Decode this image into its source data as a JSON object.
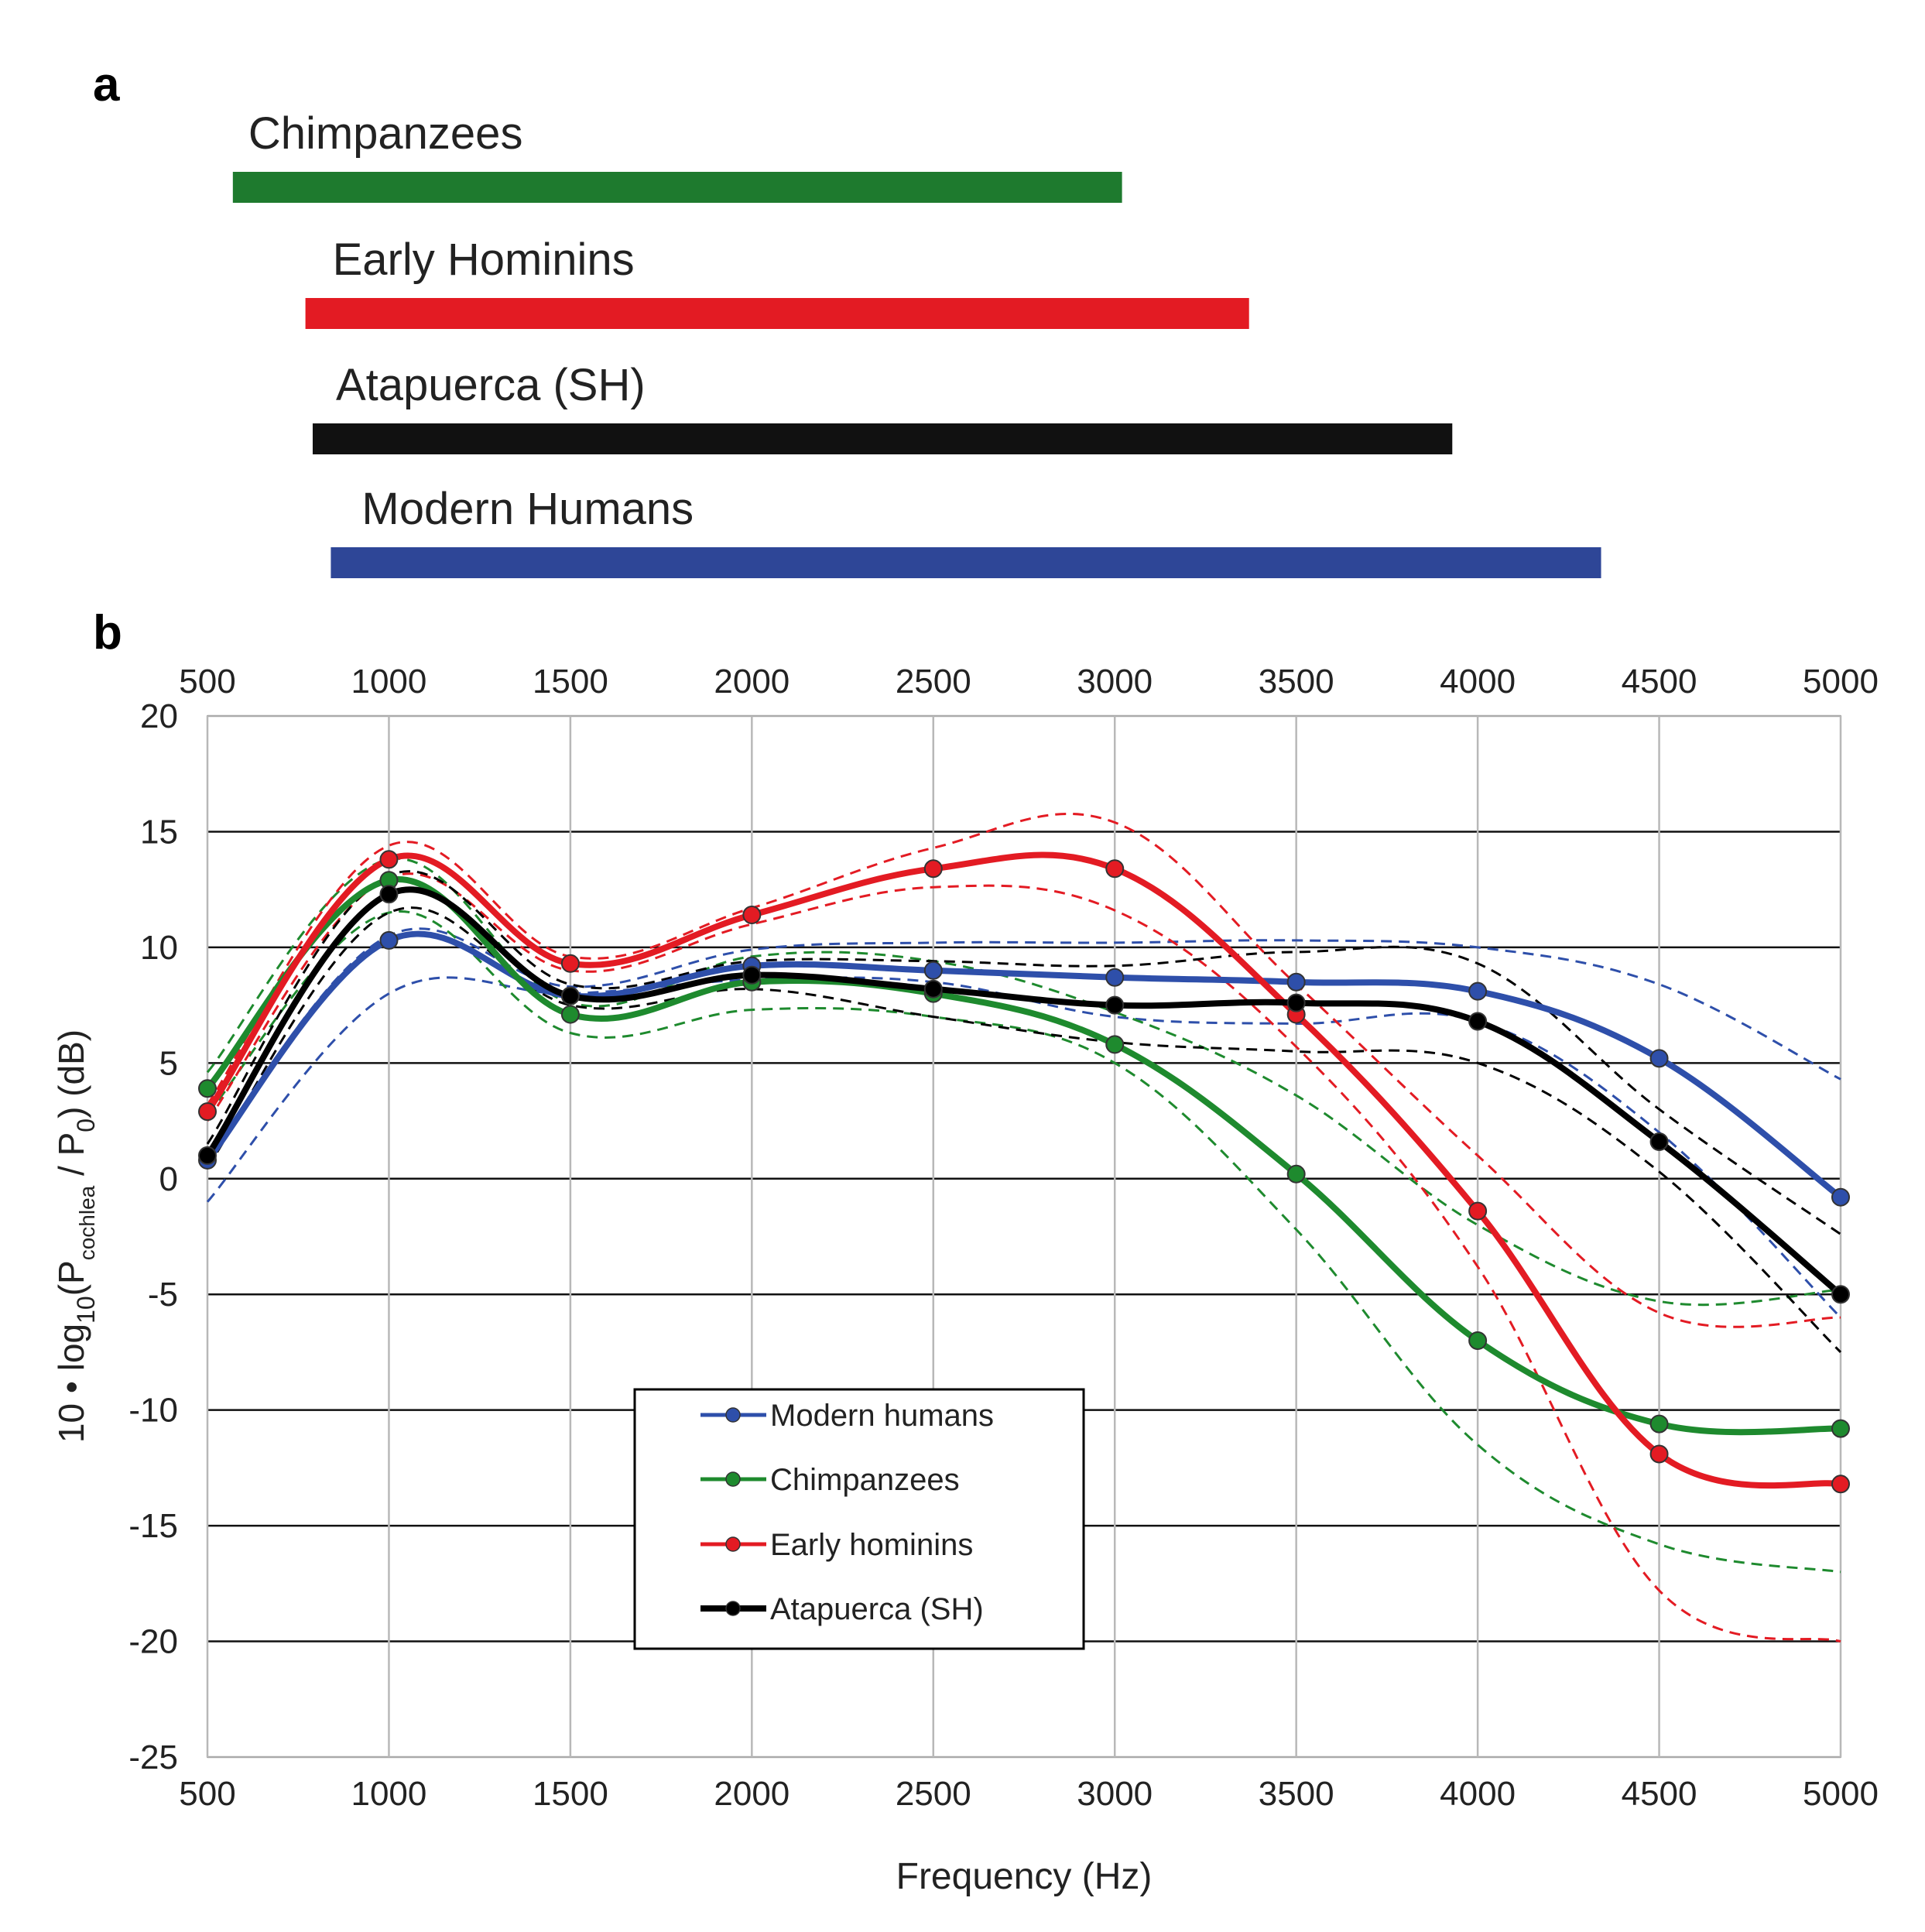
{
  "figure": {
    "panel_a_label": "a",
    "panel_b_label": "b"
  },
  "chart_data": [
    {
      "type": "bar",
      "orientation": "horizontal-range",
      "x_unit": "Frequency (Hz)",
      "note_scale": "shares frequency axis with panel b (500–5000 Hz)",
      "series": [
        {
          "name": "Chimpanzees",
          "start": 570,
          "end": 3020,
          "color": "#1e7a2e"
        },
        {
          "name": "Early Hominins",
          "start": 770,
          "end": 3370,
          "color": "#e31b23"
        },
        {
          "name": "Atapuerca (SH)",
          "start": 790,
          "end": 3930,
          "color": "#111111"
        },
        {
          "name": "Modern Humans",
          "start": 840,
          "end": 4340,
          "color": "#2e4697"
        }
      ]
    },
    {
      "type": "line",
      "xlabel": "Frequency (Hz)",
      "ylabel_parts": {
        "prefix": "10 • log",
        "sub1": "10",
        "mid": "(P",
        "sub2": "cochlea",
        "mid2": " / P",
        "sub3": "0",
        "suffix": ") (dB)"
      },
      "xlim": [
        500,
        5000
      ],
      "ylim": [
        -25,
        20
      ],
      "x_ticks": [
        500,
        1000,
        1500,
        2000,
        2500,
        3000,
        3500,
        4000,
        4500,
        5000
      ],
      "x_tick_labels": [
        "500",
        "1000",
        "1500",
        "2000",
        "2500",
        "3000",
        "3500",
        "4000",
        "4500",
        "5000"
      ],
      "y_ticks": [
        20,
        15,
        10,
        5,
        0,
        -5,
        -10,
        -15,
        -20,
        -25
      ],
      "y_tick_labels": [
        "20",
        "15",
        "10",
        "5",
        "0",
        "-5",
        "-10",
        "-15",
        "-20",
        "-25"
      ],
      "grid": true,
      "top_axis_labels": true,
      "legend_position": "lower-center",
      "x": [
        500,
        1000,
        1500,
        2000,
        2500,
        3000,
        3500,
        4000,
        4500,
        5000
      ],
      "series": [
        {
          "name": "Modern humans",
          "color": "#2e4faa",
          "values": [
            0.8,
            10.3,
            7.9,
            9.2,
            9.0,
            8.7,
            8.5,
            8.1,
            5.2,
            -0.8
          ],
          "bounds_upper": [
            0.9,
            10.5,
            8.3,
            9.9,
            10.2,
            10.2,
            10.3,
            10.0,
            8.4,
            4.3
          ],
          "bounds_lower": [
            -1.0,
            8.0,
            8.0,
            8.6,
            8.5,
            7.0,
            6.7,
            6.8,
            2.0,
            -6.0
          ]
        },
        {
          "name": "Chimpanzees",
          "color": "#1e8a2e",
          "values": [
            3.9,
            12.9,
            7.1,
            8.5,
            8.0,
            5.8,
            0.2,
            -7.0,
            -10.6,
            -10.8
          ],
          "bounds_upper": [
            4.6,
            13.8,
            7.6,
            9.6,
            9.4,
            7.2,
            3.6,
            -2.0,
            -5.3,
            -4.8
          ],
          "bounds_lower": [
            2.8,
            11.5,
            6.3,
            7.3,
            7.0,
            5.0,
            -2.2,
            -11.5,
            -15.8,
            -17.0
          ]
        },
        {
          "name": "Early hominins",
          "color": "#e31b23",
          "values": [
            2.9,
            13.8,
            9.3,
            11.4,
            13.4,
            13.4,
            7.1,
            -1.4,
            -11.9,
            -13.2
          ],
          "bounds_upper": [
            3.2,
            14.4,
            9.6,
            11.7,
            14.3,
            15.4,
            8.4,
            1.0,
            -5.8,
            -6.0
          ],
          "bounds_lower": [
            2.5,
            13.0,
            9.0,
            11.0,
            12.6,
            11.6,
            5.7,
            -3.8,
            -17.8,
            -20.0
          ]
        },
        {
          "name": "Atapuerca (SH)",
          "color": "#000000",
          "values": [
            1.0,
            12.3,
            7.9,
            8.8,
            8.2,
            7.5,
            7.6,
            6.8,
            1.6,
            -5.0
          ],
          "bounds_upper": [
            1.5,
            13.1,
            8.4,
            9.4,
            9.4,
            9.2,
            9.8,
            9.3,
            3.0,
            -2.4
          ],
          "bounds_lower": [
            0.5,
            11.5,
            7.5,
            8.2,
            7.0,
            5.9,
            5.5,
            5.0,
            0.3,
            -7.5
          ]
        }
      ]
    }
  ]
}
